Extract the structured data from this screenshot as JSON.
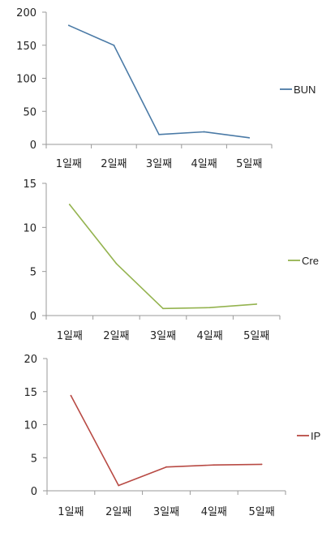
{
  "chart_data": [
    {
      "type": "line",
      "categories": [
        "1일째",
        "2일째",
        "3일째",
        "4일째",
        "5일째"
      ],
      "series": [
        {
          "name": "BUN",
          "values": [
            180,
            150,
            15,
            19,
            10
          ],
          "color": "#4a7aa6"
        }
      ],
      "ylim": [
        0,
        200
      ],
      "yticks": [
        "0",
        "50",
        "100",
        "150",
        "200"
      ],
      "legend": "right",
      "grid": false
    },
    {
      "type": "line",
      "categories": [
        "1일째",
        "2일째",
        "3일째",
        "4일째",
        "5일째"
      ],
      "series": [
        {
          "name": "Cre",
          "values": [
            12.6,
            5.9,
            0.8,
            0.9,
            1.3
          ],
          "color": "#94b34f"
        }
      ],
      "ylim": [
        0,
        15
      ],
      "yticks": [
        "0",
        "5",
        "10",
        "15"
      ],
      "legend": "right",
      "grid": false
    },
    {
      "type": "line",
      "categories": [
        "1일째",
        "2일째",
        "3일째",
        "4일째",
        "5일째"
      ],
      "series": [
        {
          "name": "IP",
          "values": [
            14.4,
            0.8,
            3.6,
            3.9,
            4.0
          ],
          "color": "#b84a44"
        }
      ],
      "ylim": [
        0,
        20
      ],
      "yticks": [
        "0",
        "5",
        "10",
        "15",
        "20"
      ],
      "legend": "right",
      "grid": false
    }
  ]
}
